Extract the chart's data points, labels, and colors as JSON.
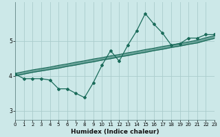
{
  "title": "",
  "xlabel": "Humidex (Indice chaleur)",
  "ylabel": "",
  "bg_color": "#cce8e8",
  "grid_color": "#aacccc",
  "line_color": "#1a6b5a",
  "x_values": [
    0,
    1,
    2,
    3,
    4,
    5,
    6,
    7,
    8,
    9,
    10,
    11,
    12,
    13,
    14,
    15,
    16,
    17,
    18,
    19,
    20,
    21,
    22,
    23
  ],
  "y_main": [
    4.05,
    3.92,
    3.92,
    3.92,
    3.88,
    3.63,
    3.63,
    3.5,
    3.38,
    3.8,
    4.3,
    4.72,
    4.42,
    4.88,
    5.28,
    5.78,
    5.48,
    5.22,
    4.88,
    4.92,
    5.08,
    5.08,
    5.18,
    5.18
  ],
  "y_linear1": [
    4.0,
    4.05,
    4.1,
    4.14,
    4.18,
    4.22,
    4.27,
    4.31,
    4.36,
    4.4,
    4.45,
    4.49,
    4.54,
    4.58,
    4.63,
    4.67,
    4.72,
    4.76,
    4.81,
    4.85,
    4.9,
    4.94,
    5.01,
    5.07
  ],
  "y_linear2": [
    4.07,
    4.12,
    4.17,
    4.21,
    4.25,
    4.3,
    4.34,
    4.39,
    4.43,
    4.48,
    4.52,
    4.57,
    4.61,
    4.66,
    4.7,
    4.75,
    4.79,
    4.84,
    4.88,
    4.93,
    4.97,
    5.02,
    5.09,
    5.15
  ],
  "ylim": [
    2.75,
    6.1
  ],
  "yticks": [
    3,
    4,
    5
  ],
  "xlim": [
    0,
    23
  ],
  "xticks": [
    0,
    1,
    2,
    3,
    4,
    5,
    6,
    7,
    8,
    9,
    10,
    11,
    12,
    13,
    14,
    15,
    16,
    17,
    18,
    19,
    20,
    21,
    22,
    23
  ],
  "xlabel_fontsize": 6.5,
  "tick_fontsize": 5.0,
  "line_width": 0.9,
  "marker_size": 2.0
}
